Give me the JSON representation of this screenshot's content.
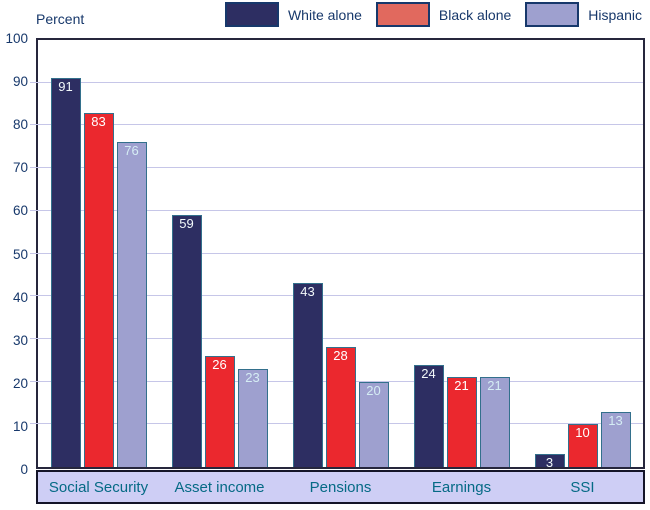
{
  "chart_data": {
    "type": "bar",
    "title": "",
    "ylabel": "Percent",
    "xlabel": "",
    "categories": [
      "Social Security",
      "Asset income",
      "Pensions",
      "Earnings",
      "SSI"
    ],
    "series": [
      {
        "name": "White alone",
        "values": [
          91,
          59,
          43,
          24,
          3
        ]
      },
      {
        "name": "Black alone",
        "values": [
          83,
          26,
          28,
          21,
          10
        ]
      },
      {
        "name": "Hispanic",
        "values": [
          76,
          23,
          20,
          21,
          13
        ]
      }
    ],
    "ylim": [
      0,
      100
    ],
    "yticks": [
      0,
      10,
      20,
      30,
      40,
      50,
      60,
      70,
      80,
      90,
      100
    ],
    "grid": true,
    "legend_position": "top"
  },
  "legend": [
    {
      "label": "White alone"
    },
    {
      "label": "Black alone"
    },
    {
      "label": "Hispanic"
    }
  ],
  "colors": {
    "series": [
      {
        "bar": "#2D2E62",
        "swatch": "#2D2E62",
        "value_label": "#F2F8FA"
      },
      {
        "bar": "#EB282E",
        "swatch": "#E1695E",
        "value_label": "#FFFFFF"
      },
      {
        "bar": "#9EA0CF",
        "swatch": "#9EA0CF",
        "value_label": "#D5EDF4"
      }
    ],
    "bar_border": "#33708C",
    "grid": "#C6C6E8",
    "plot_border": "#26263C",
    "band_bg": "#CECEF5",
    "band_border": "#141428",
    "axis_text": "#17386B",
    "category_text": "#056A85",
    "legend_text": "#17386B"
  }
}
